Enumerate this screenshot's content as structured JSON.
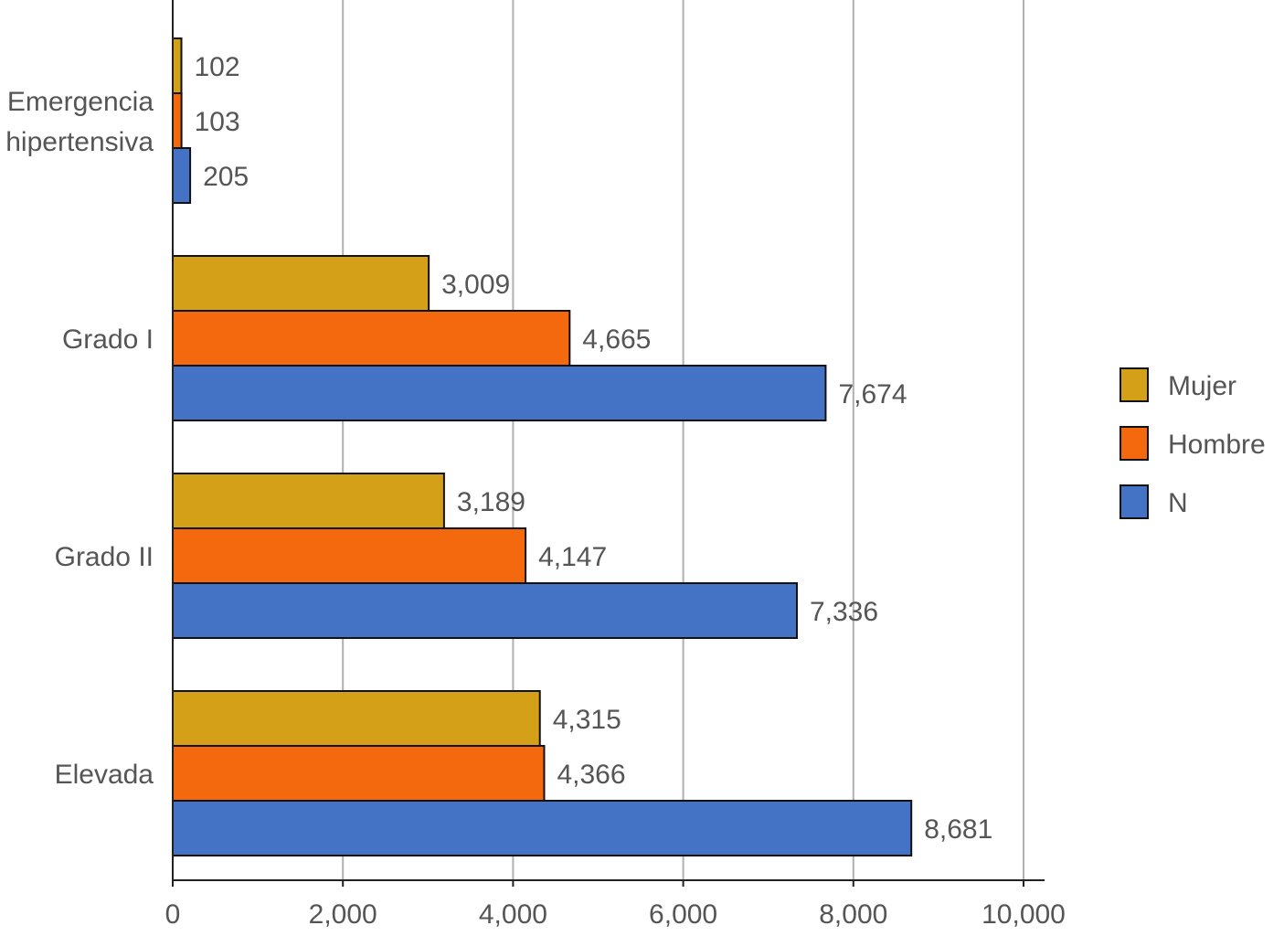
{
  "chart_data": {
    "type": "bar",
    "orientation": "horizontal",
    "title": "",
    "xlabel": "",
    "ylabel": "",
    "xlim": [
      0,
      10000
    ],
    "x_ticks": [
      0,
      2000,
      4000,
      6000,
      8000,
      10000
    ],
    "x_tick_labels": [
      "0",
      "2,000",
      "4,000",
      "6,000",
      "8,000",
      "10,000"
    ],
    "grid": "vertical",
    "legend_position": "right",
    "categories": [
      [
        "Emergencia",
        "hipertensiva"
      ],
      [
        "Grado I"
      ],
      [
        "Grado II"
      ],
      [
        "Elevada"
      ]
    ],
    "series": [
      {
        "name": "Mujer",
        "color": "#D4A017",
        "values": [
          102,
          3009,
          3189,
          4315
        ],
        "labels": [
          "102",
          "3,009",
          "3,189",
          "4,315"
        ]
      },
      {
        "name": "Hombre",
        "color": "#F5690E",
        "values": [
          103,
          4665,
          4147,
          4366
        ],
        "labels": [
          "103",
          "4,665",
          "4,147",
          "4,366"
        ]
      },
      {
        "name": "N",
        "color": "#4472C4",
        "values": [
          205,
          7674,
          7336,
          8681
        ],
        "labels": [
          "205",
          "7,674",
          "7,336",
          "8,681"
        ]
      }
    ]
  }
}
